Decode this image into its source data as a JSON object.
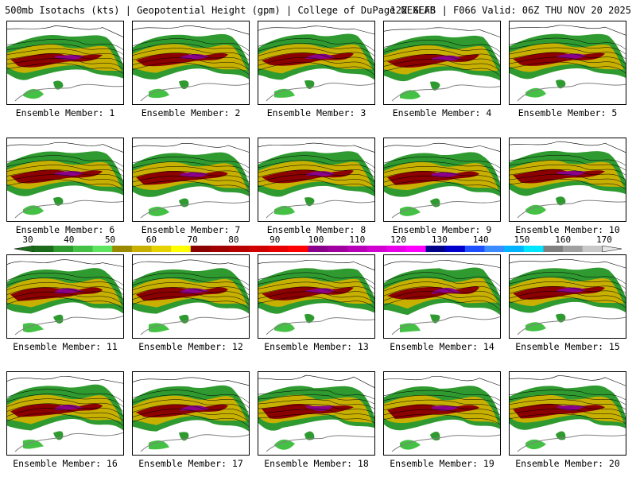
{
  "header": {
    "title_left": "500mb Isotachs (kts) | Geopotential Height (gpm) | College of DuPage NEXLAB",
    "title_right": "12Z GEFS | F066 Valid: 06Z THU NOV 20 2025"
  },
  "members": [
    "Ensemble Member: 1",
    "Ensemble Member: 2",
    "Ensemble Member: 3",
    "Ensemble Member: 4",
    "Ensemble Member: 5",
    "Ensemble Member: 6",
    "Ensemble Member: 7",
    "Ensemble Member: 8",
    "Ensemble Member: 9",
    "Ensemble Member: 10",
    "Ensemble Member: 11",
    "Ensemble Member: 12",
    "Ensemble Member: 13",
    "Ensemble Member: 14",
    "Ensemble Member: 15",
    "Ensemble Member: 16",
    "Ensemble Member: 17",
    "Ensemble Member: 18",
    "Ensemble Member: 19",
    "Ensemble Member: 20"
  ],
  "colorbar": {
    "labels": [
      "30",
      "40",
      "50",
      "60",
      "70",
      "80",
      "90",
      "100",
      "110",
      "120",
      "130",
      "140",
      "150",
      "160",
      "170"
    ],
    "colors": [
      "#1a6b1a",
      "#2f9a2f",
      "#44c144",
      "#5de35d",
      "#9a8a00",
      "#c8b000",
      "#e6d200",
      "#ffff00",
      "#8b0000",
      "#a00000",
      "#b80000",
      "#d00000",
      "#e80000",
      "#ff0000",
      "#8b008b",
      "#a000a0",
      "#b800b8",
      "#d000d0",
      "#e800e8",
      "#ff00ff",
      "#00008b",
      "#0000cd",
      "#1e50ff",
      "#3c8cff",
      "#00b4ff",
      "#00e6ff",
      "#808080",
      "#a0a0a0",
      "#c8c8c8"
    ]
  },
  "colors": {
    "land_outline": "#000000",
    "height_contour": "#000000",
    "state_line": "#555555"
  }
}
